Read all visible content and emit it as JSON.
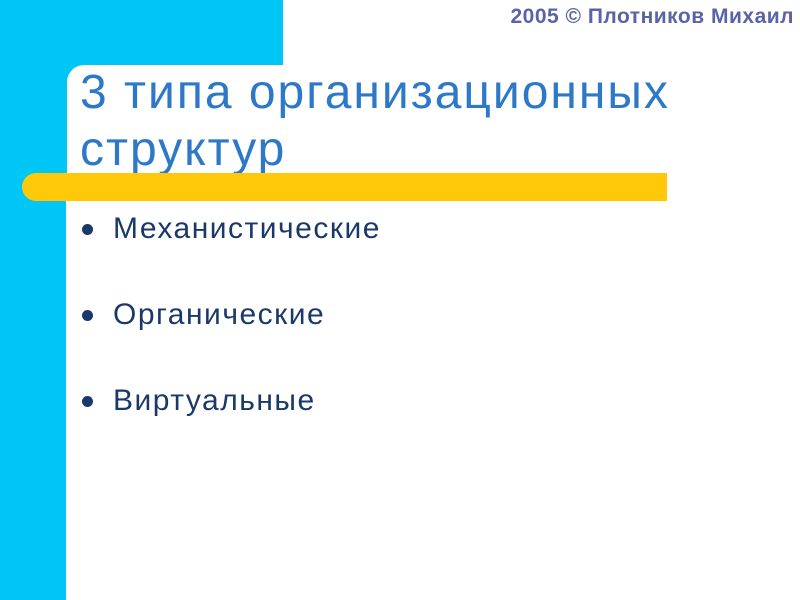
{
  "slide": {
    "copyright": "2005 © Плотников Михаил",
    "title": "3 типа организационных структур",
    "bullets": [
      {
        "label": "Механистические"
      },
      {
        "label": "Органические"
      },
      {
        "label": "Виртуальные"
      }
    ],
    "icons": {
      "bullet_icon": "filled-circle"
    },
    "colors": {
      "accent_cyan": "#00C6F5",
      "accent_yellow": "#FFC90A",
      "title_blue": "#2E78C8",
      "bullet_navy": "#1B3968",
      "copyright_blue": "#5A63A5"
    }
  }
}
